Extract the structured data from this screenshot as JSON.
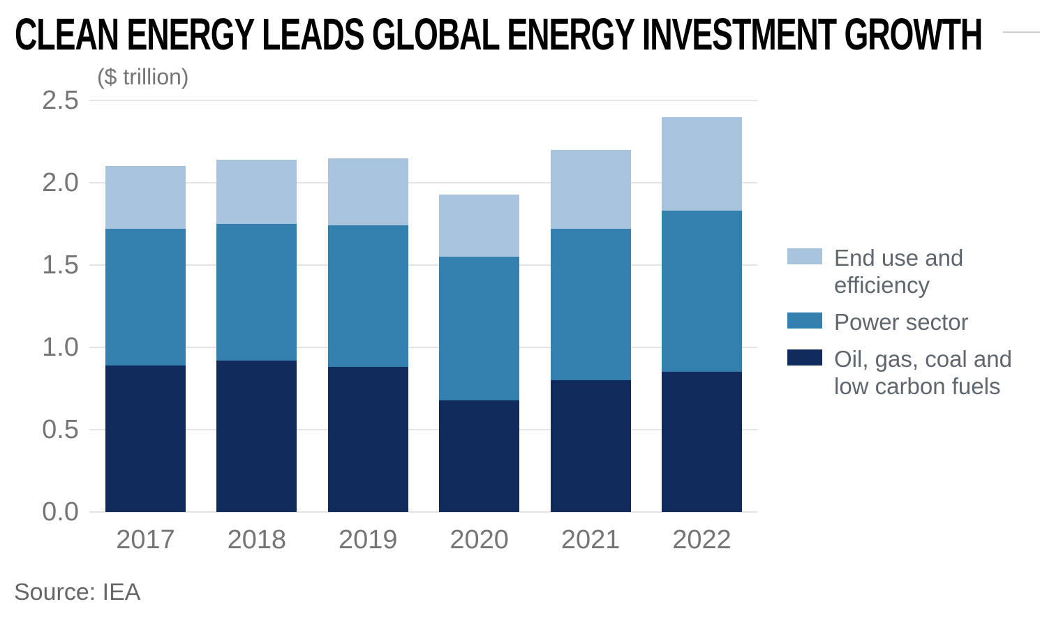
{
  "title": "CLEAN ENERGY LEADS GLOBAL ENERGY INVESTMENT GROWTH",
  "unit_label": "($ trillion)",
  "source": "Source: IEA",
  "colors": {
    "background": "#ffffff",
    "title_text": "#000000",
    "axis_text": "#757575",
    "legend_text": "#5f666d",
    "source_text": "#666666",
    "gridline": "#e4e4e4",
    "oil_gas_coal": "#102a5c",
    "power_sector": "#337fad",
    "end_use_efficiency": "#a7c4dc"
  },
  "legend": [
    {
      "label": "End use and efficiency",
      "color": "#a7c4dc"
    },
    {
      "label": "Power sector",
      "color": "#337fad"
    },
    {
      "label": "Oil, gas, coal and low carbon fuels",
      "color": "#102a5c"
    }
  ],
  "chart_data": {
    "type": "bar",
    "stacked": true,
    "title": "CLEAN ENERGY LEADS GLOBAL ENERGY INVESTMENT GROWTH",
    "ylabel": "($ trillion)",
    "categories": [
      "2017",
      "2018",
      "2019",
      "2020",
      "2021",
      "2022"
    ],
    "series": [
      {
        "name": "Oil, gas, coal and low carbon fuels",
        "color": "#102a5c",
        "values": [
          0.89,
          0.92,
          0.88,
          0.68,
          0.8,
          0.85
        ]
      },
      {
        "name": "Power sector",
        "color": "#337fad",
        "values": [
          0.83,
          0.83,
          0.86,
          0.87,
          0.92,
          0.98
        ]
      },
      {
        "name": "End use and efficiency",
        "color": "#a7c4dc",
        "values": [
          0.38,
          0.39,
          0.41,
          0.38,
          0.48,
          0.57
        ]
      }
    ],
    "totals": [
      2.1,
      2.14,
      2.15,
      1.93,
      2.2,
      2.4
    ],
    "ylim": [
      0,
      2.5
    ],
    "ytick_labels": [
      "0.0",
      "0.5",
      "1.0",
      "1.5",
      "2.0",
      "2.5"
    ],
    "grid": true,
    "legend_position": "right"
  }
}
